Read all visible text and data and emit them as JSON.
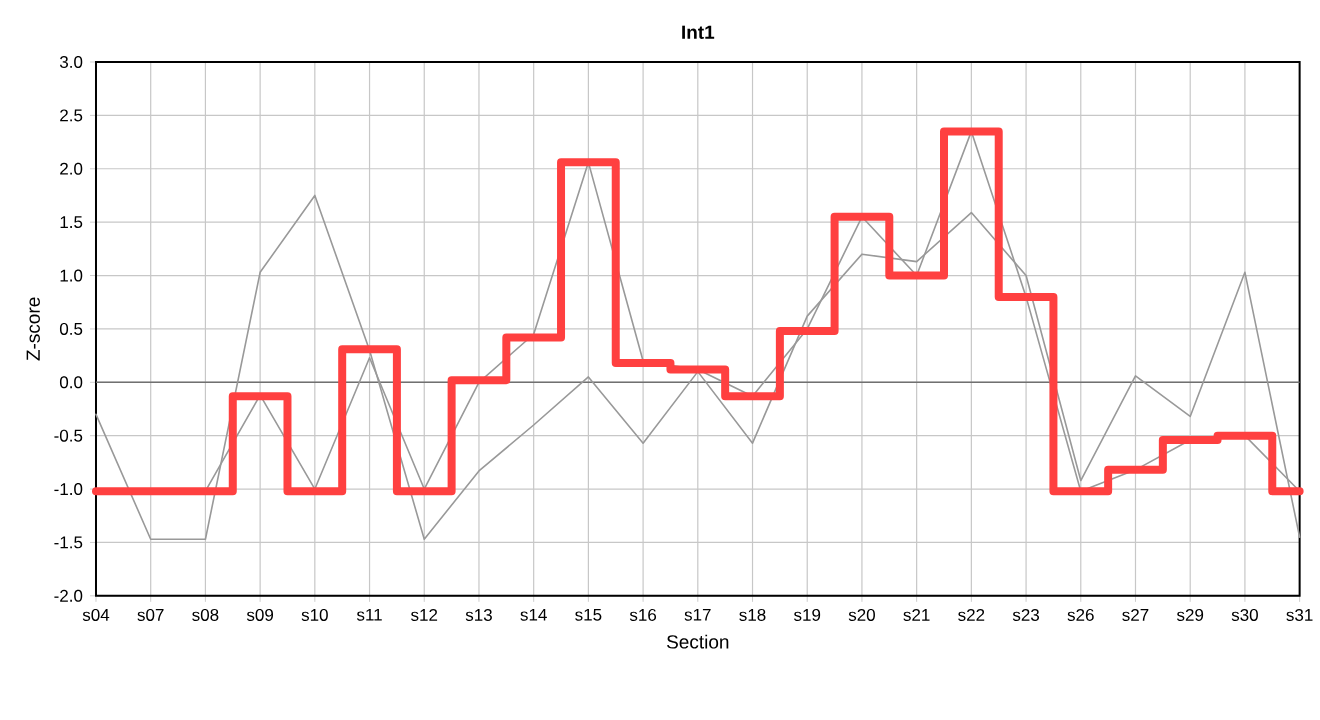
{
  "chart_data": {
    "type": "step",
    "title": "Int1",
    "xlabel": "Section",
    "ylabel": "Z-score",
    "categories": [
      "s04",
      "s07",
      "s08",
      "s09",
      "s10",
      "s11",
      "s12",
      "s13",
      "s14",
      "s15",
      "s16",
      "s17",
      "s18",
      "s19",
      "s20",
      "s21",
      "s22",
      "s23",
      "s26",
      "s27",
      "s29",
      "s30",
      "s31"
    ],
    "series": [
      {
        "type": "line",
        "color": "#999999",
        "values": [
          -0.3,
          -1.47,
          -1.47,
          1.03,
          1.75,
          0.3,
          -1.47,
          -0.83,
          -0.4,
          0.05,
          -0.57,
          0.1,
          -0.57,
          0.62,
          1.2,
          1.13,
          1.59,
          1.0,
          -0.92,
          0.06,
          -0.32,
          1.03,
          -1.45
        ]
      },
      {
        "type": "line",
        "color": "#999999",
        "values": [
          -1.02,
          -1.02,
          -1.02,
          -0.12,
          -1.0,
          0.23,
          -1.0,
          0.0,
          0.45,
          2.06,
          0.2,
          0.12,
          -0.13,
          0.5,
          1.55,
          1.0,
          2.35,
          0.8,
          -1.02,
          -0.82,
          -0.54,
          -0.5,
          -1.02
        ]
      },
      {
        "color": "#ff4040",
        "values": [
          -1.02,
          -1.02,
          -1.02,
          -0.13,
          -1.02,
          0.31,
          -1.02,
          0.02,
          0.42,
          2.06,
          0.18,
          0.12,
          -0.13,
          0.48,
          1.55,
          1.0,
          2.35,
          0.8,
          -1.02,
          -0.82,
          -0.54,
          -0.5,
          -1.02
        ]
      }
    ],
    "ylim": [
      -2.0,
      3.0
    ],
    "yticks": [
      {
        "value": -2.0,
        "label": "-2.0"
      },
      {
        "value": -1.5,
        "label": "-1.5"
      },
      {
        "value": -1.0,
        "label": "-1.0"
      },
      {
        "value": -0.5,
        "label": "-0.5"
      },
      {
        "value": 0.0,
        "label": "0.0"
      },
      {
        "value": 0.5,
        "label": "0.5"
      },
      {
        "value": 1.0,
        "label": "1.0"
      },
      {
        "value": 1.5,
        "label": "1.5"
      },
      {
        "value": 2.0,
        "label": "2.0"
      },
      {
        "value": 2.5,
        "label": "2.5"
      },
      {
        "value": 3.0,
        "label": "3.0"
      }
    ],
    "ref_lines": [
      {
        "axis": "y",
        "value": 0,
        "color": "#707070"
      }
    ],
    "grid": true
  }
}
